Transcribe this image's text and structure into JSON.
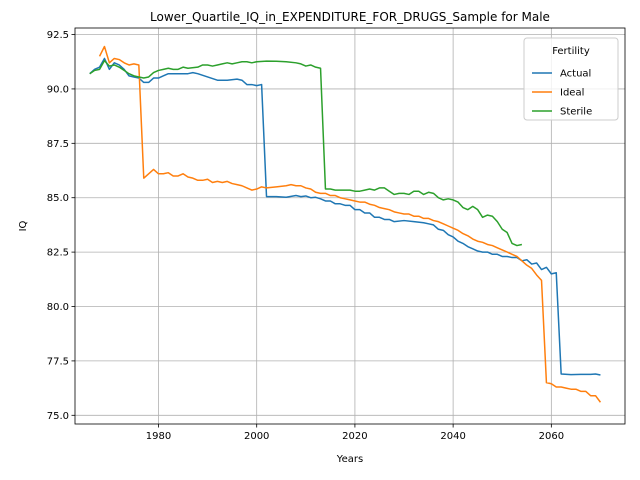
{
  "chart_data": {
    "type": "line",
    "title": "Lower_Quartile_IQ_in_EXPENDITURE_FOR_DRUGS_Sample for Male",
    "xlabel": "Years",
    "ylabel": "IQ",
    "xlim": [
      1963,
      2075
    ],
    "ylim": [
      74.6,
      92.8
    ],
    "xticks": [
      1980,
      2000,
      2020,
      2040,
      2060
    ],
    "yticks": [
      75.0,
      77.5,
      80.0,
      82.5,
      85.0,
      87.5,
      90.0,
      92.5
    ],
    "xtick_labels": [
      "1980",
      "2000",
      "2020",
      "2040",
      "2060"
    ],
    "ytick_labels": [
      "75.0",
      "77.5",
      "80.0",
      "82.5",
      "85.0",
      "87.5",
      "90.0",
      "92.5"
    ],
    "grid": true,
    "legend": {
      "title": "Fertility",
      "placement": "top-right"
    },
    "series": [
      {
        "name": "Actual",
        "color": "#1f77b4",
        "points": [
          [
            1966,
            90.7
          ],
          [
            1967,
            90.9
          ],
          [
            1968,
            91.0
          ],
          [
            1969,
            91.4
          ],
          [
            1970,
            90.9
          ],
          [
            1971,
            91.2
          ],
          [
            1972,
            91.1
          ],
          [
            1973,
            90.9
          ],
          [
            1974,
            90.6
          ],
          [
            1975,
            90.55
          ],
          [
            1976,
            90.5
          ],
          [
            1977,
            90.3
          ],
          [
            1978,
            90.3
          ],
          [
            1979,
            90.5
          ],
          [
            1980,
            90.5
          ],
          [
            1981,
            90.6
          ],
          [
            1982,
            90.7
          ],
          [
            1984,
            90.7
          ],
          [
            1986,
            90.7
          ],
          [
            1987,
            90.75
          ],
          [
            1988,
            90.7
          ],
          [
            1990,
            90.55
          ],
          [
            1992,
            90.4
          ],
          [
            1994,
            90.4
          ],
          [
            1996,
            90.45
          ],
          [
            1997,
            90.4
          ],
          [
            1998,
            90.2
          ],
          [
            1999,
            90.2
          ],
          [
            2000,
            90.15
          ],
          [
            2001,
            90.2
          ],
          [
            2002,
            85.05
          ],
          [
            2004,
            85.05
          ],
          [
            2006,
            85.02
          ],
          [
            2008,
            85.1
          ],
          [
            2009,
            85.05
          ],
          [
            2010,
            85.08
          ],
          [
            2011,
            85.0
          ],
          [
            2012,
            85.02
          ],
          [
            2013,
            84.95
          ],
          [
            2014,
            84.85
          ],
          [
            2015,
            84.85
          ],
          [
            2016,
            84.72
          ],
          [
            2017,
            84.72
          ],
          [
            2018,
            84.65
          ],
          [
            2019,
            84.65
          ],
          [
            2020,
            84.45
          ],
          [
            2021,
            84.45
          ],
          [
            2022,
            84.3
          ],
          [
            2023,
            84.3
          ],
          [
            2024,
            84.1
          ],
          [
            2025,
            84.1
          ],
          [
            2026,
            84.0
          ],
          [
            2027,
            84.0
          ],
          [
            2028,
            83.9
          ],
          [
            2030,
            83.95
          ],
          [
            2032,
            83.9
          ],
          [
            2034,
            83.85
          ],
          [
            2035,
            83.8
          ],
          [
            2036,
            83.75
          ],
          [
            2037,
            83.55
          ],
          [
            2038,
            83.5
          ],
          [
            2039,
            83.3
          ],
          [
            2040,
            83.2
          ],
          [
            2041,
            83.0
          ],
          [
            2042,
            82.9
          ],
          [
            2043,
            82.75
          ],
          [
            2044,
            82.65
          ],
          [
            2045,
            82.55
          ],
          [
            2046,
            82.5
          ],
          [
            2047,
            82.5
          ],
          [
            2048,
            82.4
          ],
          [
            2049,
            82.4
          ],
          [
            2050,
            82.3
          ],
          [
            2051,
            82.3
          ],
          [
            2052,
            82.25
          ],
          [
            2053,
            82.25
          ],
          [
            2054,
            82.1
          ],
          [
            2055,
            82.15
          ],
          [
            2056,
            81.95
          ],
          [
            2057,
            82.0
          ],
          [
            2058,
            81.7
          ],
          [
            2059,
            81.8
          ],
          [
            2060,
            81.5
          ],
          [
            2061,
            81.55
          ],
          [
            2062,
            76.9
          ],
          [
            2064,
            76.87
          ],
          [
            2066,
            76.88
          ],
          [
            2068,
            76.88
          ],
          [
            2069,
            76.9
          ],
          [
            2070,
            76.85
          ]
        ]
      },
      {
        "name": "Ideal",
        "color": "#ff7f0e",
        "points": [
          [
            1968,
            91.5
          ],
          [
            1969,
            91.95
          ],
          [
            1970,
            91.2
          ],
          [
            1971,
            91.4
          ],
          [
            1972,
            91.35
          ],
          [
            1973,
            91.2
          ],
          [
            1974,
            91.1
          ],
          [
            1975,
            91.15
          ],
          [
            1976,
            91.1
          ],
          [
            1977,
            85.9
          ],
          [
            1978,
            86.1
          ],
          [
            1979,
            86.3
          ],
          [
            1980,
            86.1
          ],
          [
            1981,
            86.1
          ],
          [
            1982,
            86.15
          ],
          [
            1983,
            86.0
          ],
          [
            1984,
            86.0
          ],
          [
            1985,
            86.1
          ],
          [
            1986,
            85.95
          ],
          [
            1987,
            85.9
          ],
          [
            1988,
            85.8
          ],
          [
            1989,
            85.8
          ],
          [
            1990,
            85.85
          ],
          [
            1991,
            85.7
          ],
          [
            1992,
            85.75
          ],
          [
            1993,
            85.7
          ],
          [
            1994,
            85.75
          ],
          [
            1995,
            85.65
          ],
          [
            1996,
            85.6
          ],
          [
            1997,
            85.55
          ],
          [
            1998,
            85.45
          ],
          [
            1999,
            85.35
          ],
          [
            2000,
            85.4
          ],
          [
            2001,
            85.5
          ],
          [
            2002,
            85.45
          ],
          [
            2004,
            85.5
          ],
          [
            2006,
            85.55
          ],
          [
            2007,
            85.6
          ],
          [
            2008,
            85.55
          ],
          [
            2009,
            85.55
          ],
          [
            2010,
            85.45
          ],
          [
            2011,
            85.4
          ],
          [
            2012,
            85.25
          ],
          [
            2013,
            85.2
          ],
          [
            2014,
            85.2
          ],
          [
            2015,
            85.1
          ],
          [
            2016,
            85.1
          ],
          [
            2017,
            85.0
          ],
          [
            2018,
            84.95
          ],
          [
            2019,
            84.9
          ],
          [
            2020,
            84.85
          ],
          [
            2021,
            84.8
          ],
          [
            2022,
            84.8
          ],
          [
            2023,
            84.7
          ],
          [
            2024,
            84.65
          ],
          [
            2025,
            84.55
          ],
          [
            2026,
            84.5
          ],
          [
            2027,
            84.45
          ],
          [
            2028,
            84.35
          ],
          [
            2029,
            84.3
          ],
          [
            2030,
            84.25
          ],
          [
            2031,
            84.25
          ],
          [
            2032,
            84.15
          ],
          [
            2033,
            84.15
          ],
          [
            2034,
            84.05
          ],
          [
            2035,
            84.05
          ],
          [
            2036,
            83.95
          ],
          [
            2037,
            83.9
          ],
          [
            2038,
            83.8
          ],
          [
            2039,
            83.7
          ],
          [
            2040,
            83.6
          ],
          [
            2041,
            83.5
          ],
          [
            2042,
            83.35
          ],
          [
            2043,
            83.25
          ],
          [
            2044,
            83.1
          ],
          [
            2045,
            83.0
          ],
          [
            2046,
            82.95
          ],
          [
            2047,
            82.85
          ],
          [
            2048,
            82.8
          ],
          [
            2049,
            82.7
          ],
          [
            2050,
            82.6
          ],
          [
            2051,
            82.5
          ],
          [
            2052,
            82.4
          ],
          [
            2053,
            82.3
          ],
          [
            2054,
            82.1
          ],
          [
            2055,
            81.9
          ],
          [
            2056,
            81.75
          ],
          [
            2057,
            81.45
          ],
          [
            2058,
            81.2
          ],
          [
            2059,
            76.5
          ],
          [
            2060,
            76.45
          ],
          [
            2061,
            76.3
          ],
          [
            2062,
            76.3
          ],
          [
            2063,
            76.25
          ],
          [
            2064,
            76.2
          ],
          [
            2065,
            76.2
          ],
          [
            2066,
            76.1
          ],
          [
            2067,
            76.1
          ],
          [
            2068,
            75.9
          ],
          [
            2069,
            75.9
          ],
          [
            2070,
            75.6
          ]
        ]
      },
      {
        "name": "Sterile",
        "color": "#2ca02c",
        "points": [
          [
            1966,
            90.7
          ],
          [
            1967,
            90.85
          ],
          [
            1968,
            90.9
          ],
          [
            1969,
            91.3
          ],
          [
            1970,
            91.05
          ],
          [
            1971,
            91.1
          ],
          [
            1972,
            91.0
          ],
          [
            1973,
            90.85
          ],
          [
            1974,
            90.7
          ],
          [
            1975,
            90.6
          ],
          [
            1976,
            90.55
          ],
          [
            1977,
            90.5
          ],
          [
            1978,
            90.55
          ],
          [
            1979,
            90.75
          ],
          [
            1980,
            90.85
          ],
          [
            1981,
            90.9
          ],
          [
            1982,
            90.95
          ],
          [
            1983,
            90.9
          ],
          [
            1984,
            90.9
          ],
          [
            1985,
            91.0
          ],
          [
            1986,
            90.95
          ],
          [
            1988,
            91.0
          ],
          [
            1989,
            91.1
          ],
          [
            1990,
            91.1
          ],
          [
            1991,
            91.05
          ],
          [
            1992,
            91.1
          ],
          [
            1993,
            91.15
          ],
          [
            1994,
            91.2
          ],
          [
            1995,
            91.15
          ],
          [
            1996,
            91.2
          ],
          [
            1997,
            91.25
          ],
          [
            1998,
            91.25
          ],
          [
            1999,
            91.2
          ],
          [
            2000,
            91.25
          ],
          [
            2002,
            91.28
          ],
          [
            2004,
            91.27
          ],
          [
            2006,
            91.25
          ],
          [
            2008,
            91.2
          ],
          [
            2009,
            91.15
          ],
          [
            2010,
            91.05
          ],
          [
            2011,
            91.1
          ],
          [
            2012,
            91.0
          ],
          [
            2013,
            90.95
          ],
          [
            2014,
            85.4
          ],
          [
            2015,
            85.4
          ],
          [
            2016,
            85.35
          ],
          [
            2017,
            85.35
          ],
          [
            2018,
            85.35
          ],
          [
            2019,
            85.35
          ],
          [
            2020,
            85.3
          ],
          [
            2021,
            85.3
          ],
          [
            2022,
            85.35
          ],
          [
            2023,
            85.4
          ],
          [
            2024,
            85.35
          ],
          [
            2025,
            85.45
          ],
          [
            2026,
            85.45
          ],
          [
            2027,
            85.3
          ],
          [
            2028,
            85.15
          ],
          [
            2029,
            85.2
          ],
          [
            2030,
            85.2
          ],
          [
            2031,
            85.15
          ],
          [
            2032,
            85.3
          ],
          [
            2033,
            85.3
          ],
          [
            2034,
            85.15
          ],
          [
            2035,
            85.25
          ],
          [
            2036,
            85.2
          ],
          [
            2037,
            85.0
          ],
          [
            2038,
            84.9
          ],
          [
            2039,
            84.95
          ],
          [
            2040,
            84.9
          ],
          [
            2041,
            84.8
          ],
          [
            2042,
            84.55
          ],
          [
            2043,
            84.45
          ],
          [
            2044,
            84.6
          ],
          [
            2045,
            84.45
          ],
          [
            2046,
            84.1
          ],
          [
            2047,
            84.2
          ],
          [
            2048,
            84.15
          ],
          [
            2049,
            83.9
          ],
          [
            2050,
            83.55
          ],
          [
            2051,
            83.4
          ],
          [
            2052,
            82.9
          ],
          [
            2053,
            82.8
          ],
          [
            2054,
            82.85
          ]
        ]
      }
    ]
  }
}
